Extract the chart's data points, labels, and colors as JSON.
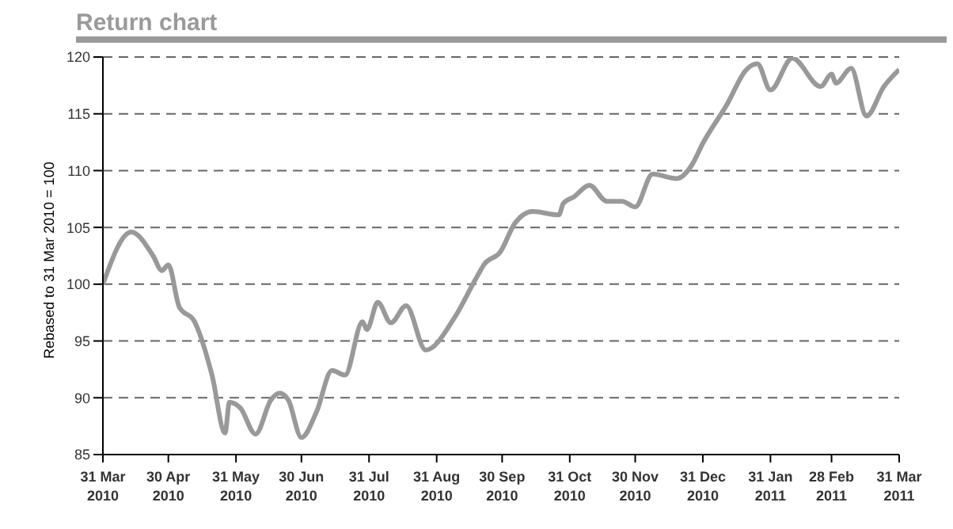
{
  "chart_data": {
    "type": "line",
    "title": "Return chart",
    "ylabel": "Rebased to 31 Mar 2010 = 100",
    "x": [
      "2010-03-31",
      "2010-04-13",
      "2010-04-23",
      "2010-04-27",
      "2010-04-30",
      "2010-05-05",
      "2010-05-12",
      "2010-05-20",
      "2010-05-26",
      "2010-05-28",
      "2010-06-02",
      "2010-06-09",
      "2010-06-16",
      "2010-06-20",
      "2010-06-24",
      "2010-06-30",
      "2010-07-07",
      "2010-07-14",
      "2010-07-20",
      "2010-07-28",
      "2010-07-30",
      "2010-08-04",
      "2010-08-10",
      "2010-08-17",
      "2010-08-26",
      "2010-09-08",
      "2010-09-18",
      "2010-09-22",
      "2010-09-29",
      "2010-10-06",
      "2010-10-14",
      "2010-10-26",
      "2010-10-28",
      "2010-11-02",
      "2010-11-09",
      "2010-11-17",
      "2010-11-24",
      "2010-11-30",
      "2010-12-08",
      "2010-12-19",
      "2010-12-26",
      "2010-12-31",
      "2011-01-11",
      "2011-01-20",
      "2011-01-25",
      "2011-01-31",
      "2011-02-10",
      "2011-02-23",
      "2011-02-28",
      "2011-03-02",
      "2011-03-09",
      "2011-03-16",
      "2011-03-24",
      "2011-03-31"
    ],
    "series": [
      {
        "color": "#999999",
        "values": [
          100,
          104.6,
          102.5,
          101.2,
          101.7,
          98.0,
          96.7,
          92.0,
          86.9,
          89.6,
          89.1,
          86.8,
          89.8,
          90.4,
          89.8,
          86.5,
          88.8,
          92.4,
          92.0,
          96.7,
          96.0,
          98.4,
          96.6,
          98.1,
          94.2,
          97.0,
          100.5,
          101.8,
          102.8,
          105.4,
          106.4,
          106.1,
          107.1,
          107.7,
          108.7,
          107.3,
          107.3,
          106.8,
          109.7,
          109.3,
          110.5,
          112.4,
          115.8,
          118.9,
          119.4,
          117.1,
          119.9,
          117.4,
          118.5,
          117.7,
          119.0,
          114.8,
          117.4,
          118.9
        ]
      }
    ],
    "xlim": [
      "2010-03-31",
      "2011-03-31"
    ],
    "xticks": [
      {
        "value": "2010-03-31",
        "label": "31 Mar 2010"
      },
      {
        "value": "2010-04-30",
        "label": "30 Apr 2010"
      },
      {
        "value": "2010-05-31",
        "label": "31 May 2010"
      },
      {
        "value": "2010-06-30",
        "label": "30 Jun 2010"
      },
      {
        "value": "2010-07-31",
        "label": "31 Jul 2010"
      },
      {
        "value": "2010-08-31",
        "label": "31 Aug 2010"
      },
      {
        "value": "2010-09-30",
        "label": "30 Sep 2010"
      },
      {
        "value": "2010-10-31",
        "label": "31 Oct 2010"
      },
      {
        "value": "2010-11-30",
        "label": "30 Nov 2010"
      },
      {
        "value": "2010-12-31",
        "label": "31 Dec 2010"
      },
      {
        "value": "2011-01-31",
        "label": "31 Jan 2011"
      },
      {
        "value": "2011-02-28",
        "label": "28 Feb 2011"
      },
      {
        "value": "2011-03-31",
        "label": "31 Mar 2011"
      }
    ],
    "ylim": [
      85,
      120
    ],
    "yticks": [
      85,
      90,
      95,
      100,
      105,
      110,
      115,
      120
    ],
    "grid": "y",
    "legend": false,
    "marker": "none",
    "line_style": "solid"
  }
}
